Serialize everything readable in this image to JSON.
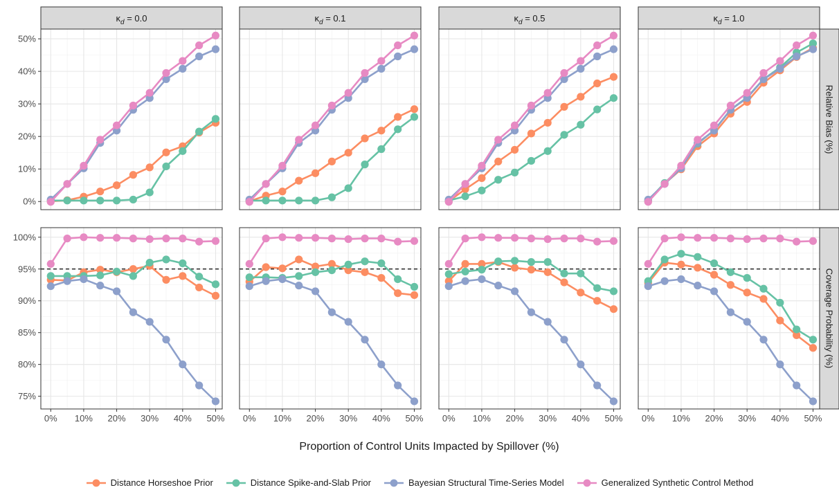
{
  "chart_data": {
    "type": "line",
    "xlabel": "Proportion of Control Units Impacted by Spillover (%)",
    "x": [
      0,
      5,
      10,
      15,
      20,
      25,
      30,
      35,
      40,
      45,
      50
    ],
    "xticks": [
      "0%",
      "10%",
      "20%",
      "30%",
      "40%",
      "50%"
    ],
    "xlim": [
      -3,
      52
    ],
    "reference_line": {
      "row": "Coverage Probability (%)",
      "y": 95
    },
    "legend_position": "bottom",
    "colors": {
      "Distance Horseshoe Prior": "#fc8d62",
      "Distance Spike-and-Slab Prior": "#66c2a5",
      "Bayesian Structural Time-Series Model": "#8da0cb",
      "Generalized Synthetic Control Method": "#e78ac3"
    },
    "series_order": [
      "Distance Horseshoe Prior",
      "Distance Spike-and-Slab Prior",
      "Bayesian Structural Time-Series Model",
      "Generalized Synthetic Control Method"
    ],
    "columns": [
      {
        "symbol": "κ",
        "subscript": "d",
        "value": "= 0.0"
      },
      {
        "symbol": "κ",
        "subscript": "d",
        "value": "= 0.1"
      },
      {
        "symbol": "κ",
        "subscript": "d",
        "value": "= 0.5"
      },
      {
        "symbol": "κ",
        "subscript": "d",
        "value": "= 1.0"
      }
    ],
    "rows": [
      {
        "label": "Relative Bias (%)",
        "ylim": [
          -2.5,
          53
        ],
        "yticks": [
          0,
          10,
          20,
          30,
          40,
          50
        ],
        "ytick_labels": [
          "0%",
          "10%",
          "20%",
          "30%",
          "40%",
          "50%"
        ]
      },
      {
        "label": "Coverage Probability (%)",
        "ylim": [
          73,
          101.5
        ],
        "yticks": [
          75,
          80,
          85,
          90,
          95,
          100
        ],
        "ytick_labels": [
          "75%",
          "80%",
          "85%",
          "90%",
          "95%",
          "100%"
        ]
      }
    ],
    "panels": [
      {
        "row": 0,
        "col": 0,
        "series": [
          {
            "name": "Distance Horseshoe Prior",
            "values": [
              0.1,
              0.4,
              1.5,
              3.1,
              5.0,
              8.2,
              10.5,
              15.1,
              17.0,
              21.2,
              24.2
            ]
          },
          {
            "name": "Distance Spike-and-Slab Prior",
            "values": [
              0.3,
              0.3,
              0.3,
              0.3,
              0.3,
              0.6,
              2.8,
              10.8,
              15.5,
              21.5,
              25.4
            ]
          },
          {
            "name": "Bayesian Structural Time-Series Model",
            "values": [
              0.6,
              5.4,
              10.2,
              18.0,
              21.8,
              28.2,
              31.8,
              37.6,
              40.8,
              44.6,
              46.8
            ]
          },
          {
            "name": "Generalized Synthetic Control Method",
            "values": [
              -0.1,
              5.4,
              11.0,
              19.0,
              23.4,
              29.5,
              33.4,
              39.5,
              43.2,
              48.0,
              51.0
            ]
          }
        ]
      },
      {
        "row": 0,
        "col": 1,
        "series": [
          {
            "name": "Distance Horseshoe Prior",
            "values": [
              0.1,
              1.8,
              3.1,
              6.4,
              8.7,
              12.3,
              15.0,
              19.4,
              21.8,
              26.0,
              28.4
            ]
          },
          {
            "name": "Distance Spike-and-Slab Prior",
            "values": [
              0.3,
              0.3,
              0.3,
              0.3,
              0.3,
              1.3,
              4.1,
              11.4,
              16.1,
              22.2,
              26.0
            ]
          },
          {
            "name": "Bayesian Structural Time-Series Model",
            "values": [
              0.6,
              5.4,
              10.2,
              18.0,
              21.8,
              28.2,
              31.8,
              37.6,
              40.8,
              44.6,
              46.8
            ]
          },
          {
            "name": "Generalized Synthetic Control Method",
            "values": [
              -0.1,
              5.4,
              11.0,
              19.0,
              23.4,
              29.5,
              33.4,
              39.5,
              43.2,
              48.0,
              51.0
            ]
          }
        ]
      },
      {
        "row": 0,
        "col": 2,
        "series": [
          {
            "name": "Distance Horseshoe Prior",
            "values": [
              0.1,
              3.8,
              7.2,
              12.3,
              15.9,
              20.9,
              24.2,
              29.1,
              32.2,
              36.3,
              38.3
            ]
          },
          {
            "name": "Distance Spike-and-Slab Prior",
            "values": [
              0.3,
              1.6,
              3.4,
              6.7,
              8.9,
              12.5,
              15.5,
              20.5,
              23.6,
              28.3,
              31.8
            ]
          },
          {
            "name": "Bayesian Structural Time-Series Model",
            "values": [
              0.6,
              5.4,
              10.2,
              18.0,
              21.8,
              28.2,
              31.8,
              37.6,
              40.8,
              44.6,
              46.8
            ]
          },
          {
            "name": "Generalized Synthetic Control Method",
            "values": [
              -0.1,
              5.4,
              11.0,
              19.0,
              23.4,
              29.5,
              33.4,
              39.5,
              43.2,
              48.0,
              51.0
            ]
          }
        ]
      },
      {
        "row": 0,
        "col": 3,
        "series": [
          {
            "name": "Distance Horseshoe Prior",
            "values": [
              0.1,
              5.5,
              9.9,
              17.0,
              20.9,
              27.0,
              30.6,
              36.5,
              40.3,
              44.4,
              47.2
            ]
          },
          {
            "name": "Distance Spike-and-Slab Prior",
            "values": [
              0.3,
              5.7,
              10.5,
              17.8,
              21.9,
              28.2,
              32.0,
              37.6,
              41.2,
              45.8,
              48.6
            ]
          },
          {
            "name": "Bayesian Structural Time-Series Model",
            "values": [
              0.6,
              5.4,
              10.2,
              18.0,
              21.8,
              28.2,
              31.8,
              37.6,
              40.8,
              44.6,
              46.8
            ]
          },
          {
            "name": "Generalized Synthetic Control Method",
            "values": [
              -0.1,
              5.4,
              11.0,
              19.0,
              23.4,
              29.5,
              33.4,
              39.5,
              43.2,
              48.0,
              51.0
            ]
          }
        ]
      },
      {
        "row": 1,
        "col": 0,
        "series": [
          {
            "name": "Distance Horseshoe Prior",
            "values": [
              93.3,
              93.2,
              94.5,
              94.9,
              94.5,
              95.0,
              95.5,
              93.3,
              93.9,
              92.1,
              90.8
            ]
          },
          {
            "name": "Distance Spike-and-Slab Prior",
            "values": [
              93.9,
              93.9,
              93.9,
              94.0,
              94.6,
              93.9,
              96.0,
              96.5,
              95.9,
              93.8,
              92.6
            ]
          },
          {
            "name": "Bayesian Structural Time-Series Model",
            "values": [
              92.3,
              93.1,
              93.4,
              92.4,
              91.5,
              88.2,
              86.7,
              83.9,
              80.0,
              76.7,
              74.2
            ]
          },
          {
            "name": "Generalized Synthetic Control Method",
            "values": [
              95.8,
              99.8,
              100.0,
              99.9,
              99.9,
              99.8,
              99.7,
              99.8,
              99.8,
              99.3,
              99.4
            ]
          }
        ]
      },
      {
        "row": 1,
        "col": 1,
        "series": [
          {
            "name": "Distance Horseshoe Prior",
            "values": [
              93.0,
              95.3,
              95.1,
              96.5,
              95.4,
              95.8,
              94.8,
              94.5,
              93.6,
              91.2,
              90.9
            ]
          },
          {
            "name": "Distance Spike-and-Slab Prior",
            "values": [
              93.7,
              93.7,
              93.6,
              93.9,
              94.5,
              94.8,
              95.7,
              96.2,
              95.9,
              93.4,
              92.2
            ]
          },
          {
            "name": "Bayesian Structural Time-Series Model",
            "values": [
              92.3,
              93.1,
              93.4,
              92.4,
              91.5,
              88.2,
              86.7,
              83.9,
              80.0,
              76.7,
              74.2
            ]
          },
          {
            "name": "Generalized Synthetic Control Method",
            "values": [
              95.8,
              99.8,
              100.0,
              99.9,
              99.9,
              99.8,
              99.7,
              99.8,
              99.8,
              99.3,
              99.4
            ]
          }
        ]
      },
      {
        "row": 1,
        "col": 2,
        "series": [
          {
            "name": "Distance Horseshoe Prior",
            "values": [
              93.1,
              95.8,
              95.8,
              96.1,
              95.2,
              94.9,
              94.5,
              92.9,
              91.3,
              90.0,
              88.7
            ]
          },
          {
            "name": "Distance Spike-and-Slab Prior",
            "values": [
              94.2,
              94.6,
              94.9,
              96.2,
              96.3,
              96.1,
              96.1,
              94.3,
              94.3,
              92.0,
              91.5
            ]
          },
          {
            "name": "Bayesian Structural Time-Series Model",
            "values": [
              92.3,
              93.1,
              93.4,
              92.4,
              91.5,
              88.2,
              86.7,
              83.9,
              80.0,
              76.7,
              74.2
            ]
          },
          {
            "name": "Generalized Synthetic Control Method",
            "values": [
              95.8,
              99.8,
              100.0,
              99.9,
              99.9,
              99.8,
              99.7,
              99.8,
              99.8,
              99.3,
              99.4
            ]
          }
        ]
      },
      {
        "row": 1,
        "col": 3,
        "series": [
          {
            "name": "Distance Horseshoe Prior",
            "values": [
              92.8,
              96.0,
              95.7,
              95.2,
              94.1,
              92.5,
              91.3,
              90.3,
              86.9,
              84.6,
              82.6
            ]
          },
          {
            "name": "Distance Spike-and-Slab Prior",
            "values": [
              93.1,
              96.5,
              97.4,
              96.9,
              95.9,
              94.5,
              93.6,
              91.9,
              89.7,
              85.5,
              83.9
            ]
          },
          {
            "name": "Bayesian Structural Time-Series Model",
            "values": [
              92.3,
              93.1,
              93.4,
              92.4,
              91.5,
              88.2,
              86.7,
              83.9,
              80.0,
              76.7,
              74.2
            ]
          },
          {
            "name": "Generalized Synthetic Control Method",
            "values": [
              95.8,
              99.8,
              100.0,
              99.9,
              99.9,
              99.8,
              99.7,
              99.8,
              99.8,
              99.3,
              99.4
            ]
          }
        ]
      }
    ]
  }
}
